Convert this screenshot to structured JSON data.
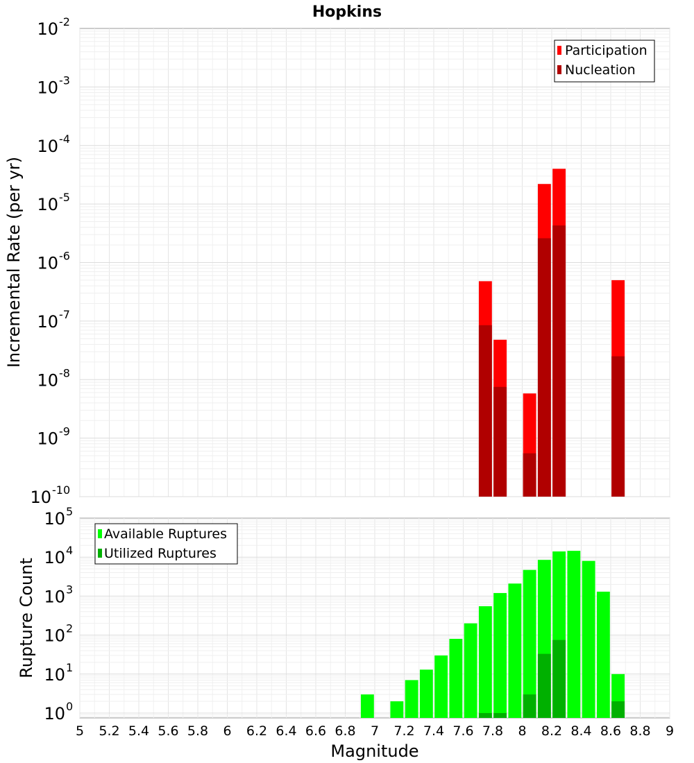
{
  "chart_data": [
    {
      "type": "bar",
      "title": "Hopkins",
      "xlabel": "",
      "ylabel": "Incremental Rate (per yr)",
      "yscale": "log",
      "ylim": [
        1e-10,
        0.01
      ],
      "xlim": [
        5,
        9
      ],
      "y_tick_base": "10",
      "y_tick_exponents": [
        "-2",
        "-3",
        "-4",
        "-5",
        "-6",
        "-7",
        "-8",
        "-9",
        "-10"
      ],
      "legend_position": "top-right",
      "legend": [
        "Participation",
        "Nucleation"
      ],
      "series": [
        {
          "name": "Participation",
          "color": "#ff0000",
          "x": [
            7.75,
            7.85,
            8.05,
            8.15,
            8.25,
            8.65
          ],
          "values": [
            4.8e-07,
            4.8e-08,
            5.8e-09,
            2.2e-05,
            4e-05,
            5e-07
          ]
        },
        {
          "name": "Nucleation",
          "color": "#b00000",
          "x": [
            7.75,
            7.85,
            8.05,
            8.15,
            8.25,
            8.65
          ],
          "values": [
            8.5e-08,
            7.5e-09,
            5.5e-10,
            2.6e-06,
            4.3e-06,
            2.5e-08
          ]
        }
      ]
    },
    {
      "type": "bar",
      "title": "",
      "xlabel": "Magnitude",
      "ylabel": "Rupture Count",
      "yscale": "log",
      "ylim": [
        0.75,
        100000.0
      ],
      "xlim": [
        5,
        9
      ],
      "y_tick_base": "10",
      "y_tick_exponents": [
        "5",
        "4",
        "3",
        "2",
        "1",
        "0"
      ],
      "x_ticks": [
        "5",
        "5.2",
        "5.4",
        "5.6",
        "5.8",
        "6",
        "6.2",
        "6.4",
        "6.6",
        "6.8",
        "7",
        "7.2",
        "7.4",
        "7.6",
        "7.8",
        "8",
        "8.2",
        "8.4",
        "8.6",
        "8.8",
        "9"
      ],
      "legend_position": "top-left",
      "legend": [
        "Available Ruptures",
        "Utilized Ruptures"
      ],
      "series": [
        {
          "name": "Available Ruptures",
          "color": "#00ff00",
          "x": [
            6.95,
            7.15,
            7.25,
            7.35,
            7.45,
            7.55,
            7.65,
            7.75,
            7.85,
            7.95,
            8.05,
            8.15,
            8.25,
            8.35,
            8.45,
            8.55,
            8.65
          ],
          "values": [
            3,
            2,
            7,
            13,
            30,
            80,
            200,
            550,
            1200,
            2100,
            4700,
            8500,
            14000,
            14500,
            8000,
            1300,
            10
          ]
        },
        {
          "name": "Utilized Ruptures",
          "color": "#00b000",
          "x": [
            7.75,
            7.85,
            8.05,
            8.15,
            8.25,
            8.65
          ],
          "values": [
            1,
            1,
            3,
            33,
            75,
            2
          ]
        }
      ]
    }
  ]
}
